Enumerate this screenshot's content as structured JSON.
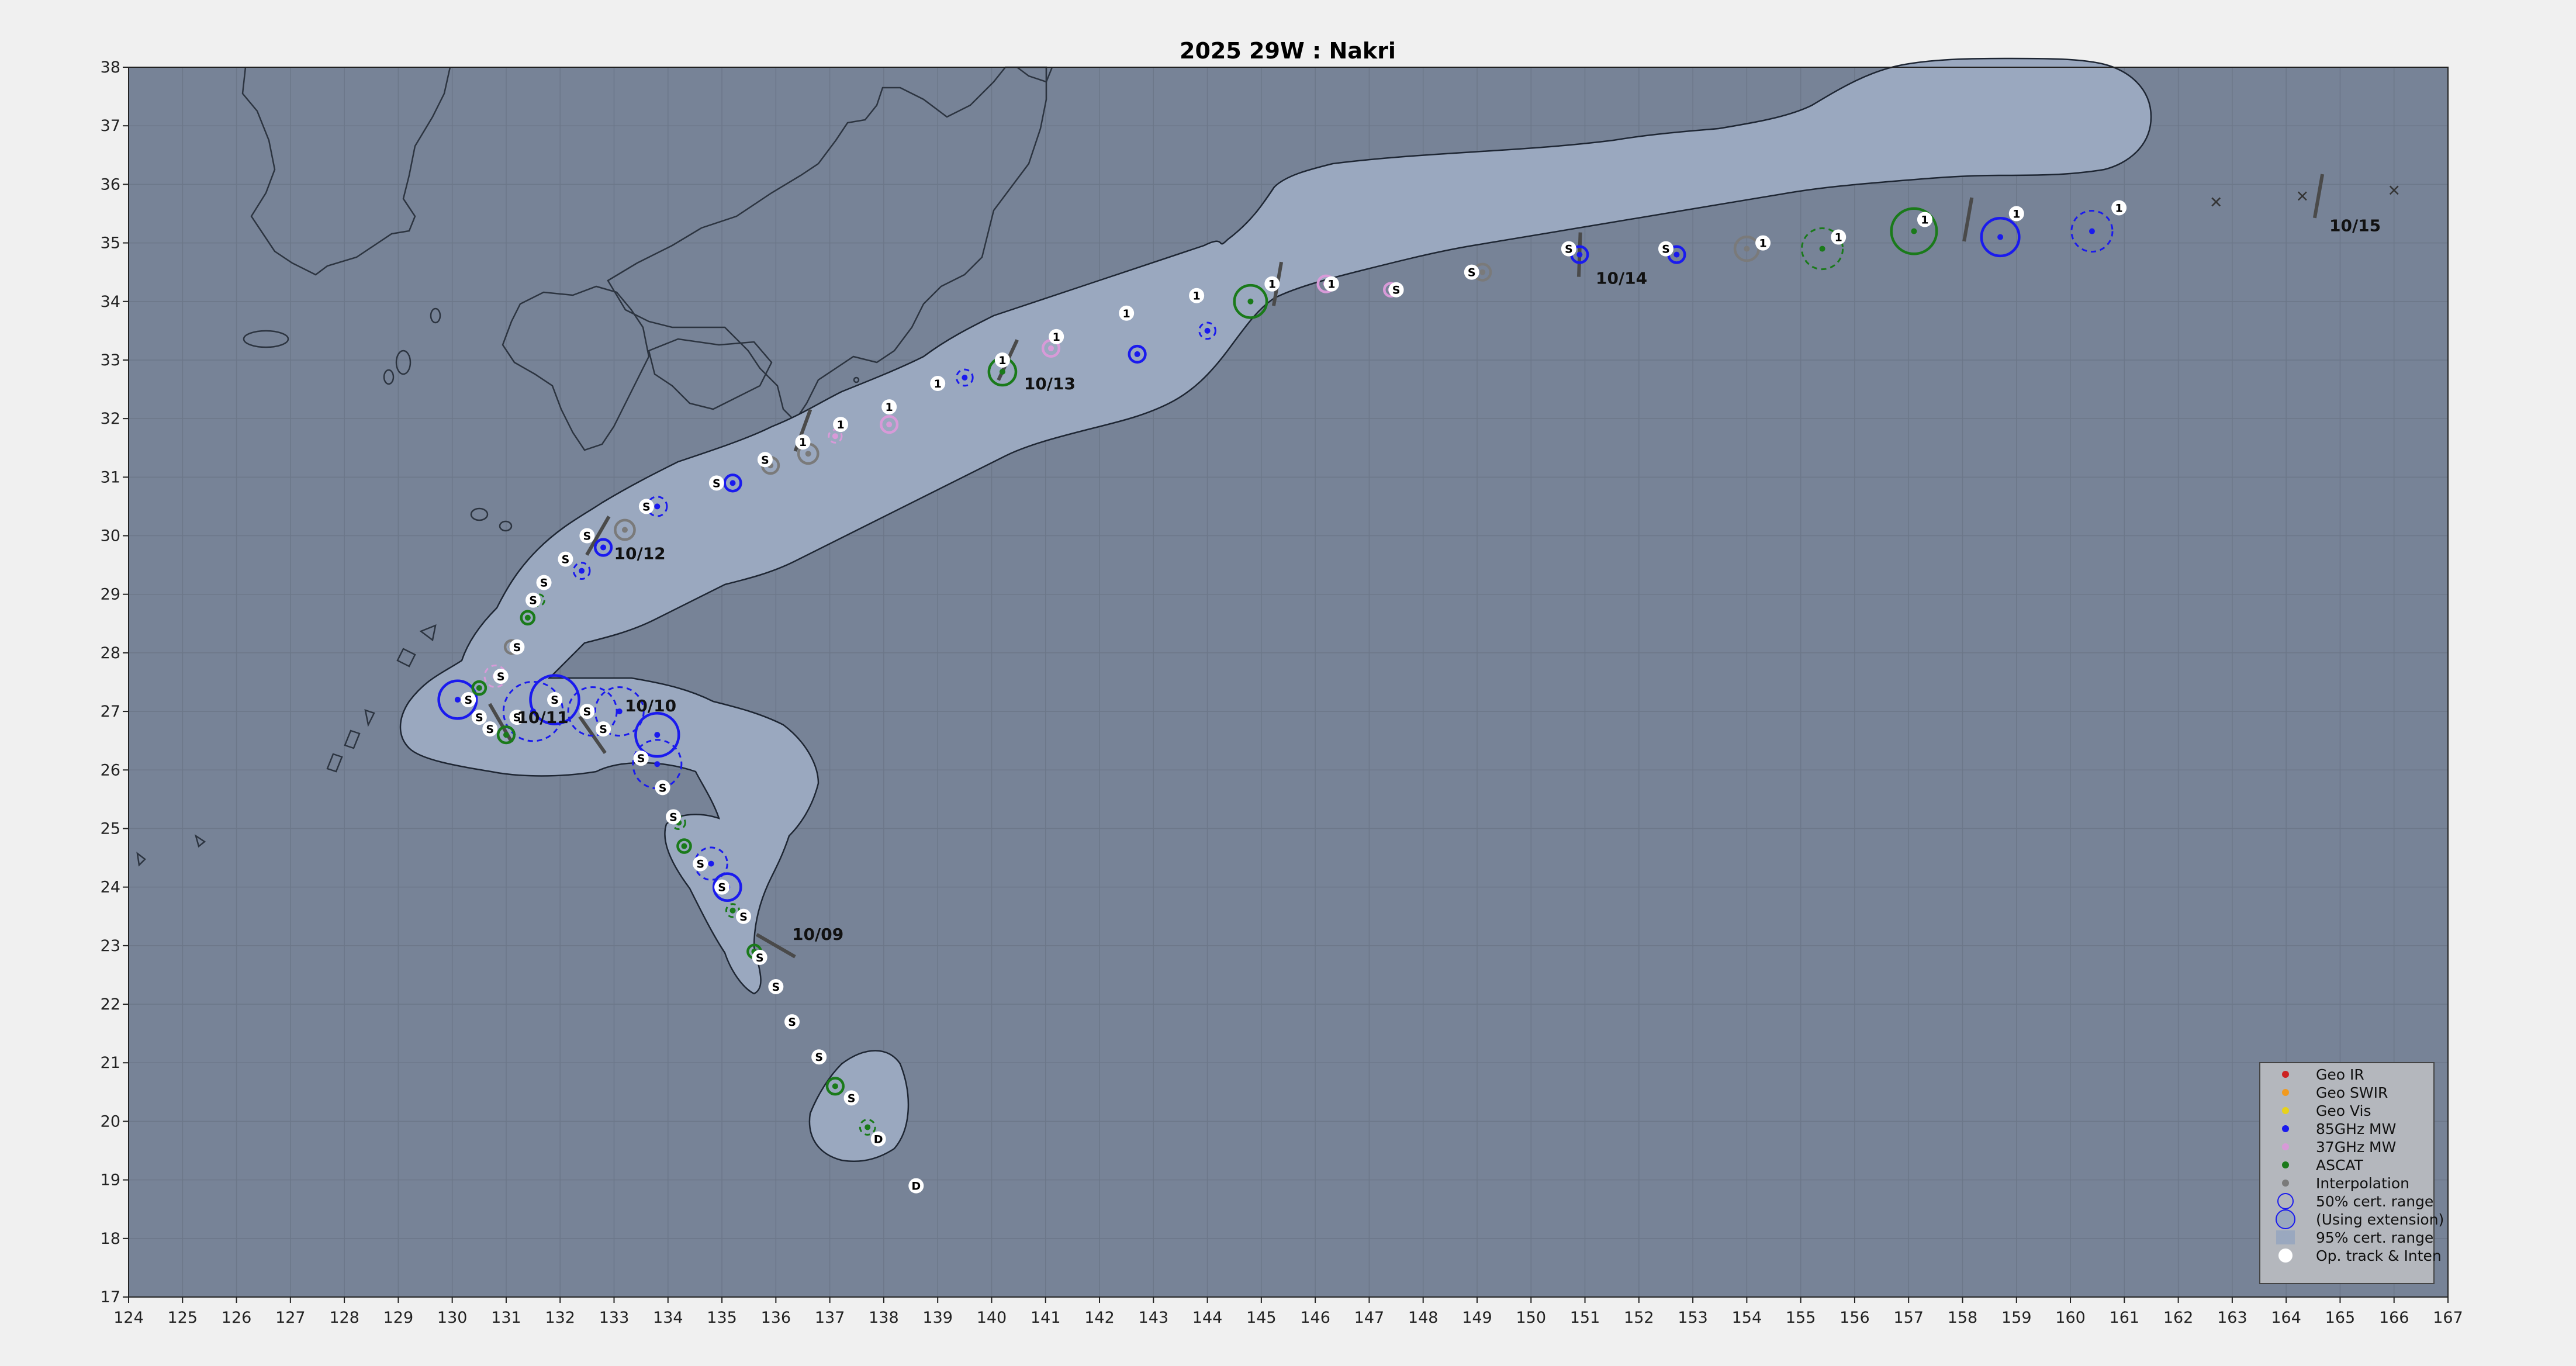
{
  "title": "2025  29W :  Nakri",
  "colors": {
    "background": "#f0f0f0",
    "ocean": "#778397",
    "grid": "#6c7789",
    "coast": "#2c3440",
    "cone_fill": "#9aa8bf",
    "cone_edge": "#1e2633",
    "legend_bg": "#b4b7bd",
    "geo_ir": "#cc2222",
    "geo_swir": "#f29a1e",
    "geo_vis": "#e8d21a",
    "mw85": "#1a1aee",
    "mw37": "#d89ad8",
    "ascat": "#1a7a1a",
    "interp": "#7a7a7a",
    "op_track": "#ffffff"
  },
  "axes": {
    "x_ticks": [
      "124",
      "125",
      "126",
      "127",
      "128",
      "129",
      "130",
      "131",
      "132",
      "133",
      "134",
      "135",
      "136",
      "137",
      "138",
      "139",
      "140",
      "141",
      "142",
      "143",
      "144",
      "145",
      "146",
      "147",
      "148",
      "149",
      "150",
      "151",
      "152",
      "153",
      "154",
      "155",
      "156",
      "157",
      "158",
      "159",
      "160",
      "161",
      "162",
      "163",
      "164",
      "165",
      "166",
      "167"
    ],
    "y_ticks": [
      "17",
      "18",
      "19",
      "20",
      "21",
      "22",
      "23",
      "24",
      "25",
      "26",
      "27",
      "28",
      "29",
      "30",
      "31",
      "32",
      "33",
      "34",
      "35",
      "36",
      "37",
      "38"
    ],
    "lon_range": [
      124,
      167
    ],
    "lat_range": [
      17,
      38
    ]
  },
  "date_labels": [
    {
      "text": "10/09",
      "lon": 136.3,
      "lat": 23.1
    },
    {
      "text": "10/10",
      "lon": 133.2,
      "lat": 27.0
    },
    {
      "text": "10/11",
      "lon": 131.2,
      "lat": 26.8
    },
    {
      "text": "10/12",
      "lon": 133.0,
      "lat": 29.6
    },
    {
      "text": "10/13",
      "lon": 140.6,
      "lat": 32.5
    },
    {
      "text": "10/14",
      "lon": 151.2,
      "lat": 34.3
    },
    {
      "text": "10/15",
      "lon": 164.8,
      "lat": 35.2
    }
  ],
  "day_ticks": [
    {
      "lon": 136.0,
      "lat": 23.0,
      "angle": 30
    },
    {
      "lon": 132.6,
      "lat": 26.6,
      "angle": 55
    },
    {
      "lon": 130.9,
      "lat": 26.8,
      "angle": 60
    },
    {
      "lon": 132.7,
      "lat": 30.0,
      "angle": -60
    },
    {
      "lon": 140.3,
      "lat": 33.0,
      "angle": -65
    },
    {
      "lon": 150.9,
      "lat": 34.8,
      "angle": -88
    },
    {
      "lon": 164.6,
      "lat": 35.8,
      "angle": -80
    },
    {
      "lon": 145.3,
      "lat": 34.3,
      "angle": -80
    },
    {
      "lon": 136.5,
      "lat": 31.8,
      "angle": -70
    },
    {
      "lon": 158.1,
      "lat": 35.4,
      "angle": -80
    }
  ],
  "op_track": [
    {
      "lon": 138.6,
      "lat": 18.9,
      "label": "D"
    },
    {
      "lon": 137.9,
      "lat": 19.7,
      "label": "D"
    },
    {
      "lon": 137.4,
      "lat": 20.4,
      "label": "S"
    },
    {
      "lon": 136.8,
      "lat": 21.1,
      "label": "S"
    },
    {
      "lon": 136.3,
      "lat": 21.7,
      "label": "S"
    },
    {
      "lon": 136.0,
      "lat": 22.3,
      "label": "S"
    },
    {
      "lon": 135.7,
      "lat": 22.8,
      "label": "S"
    },
    {
      "lon": 135.4,
      "lat": 23.5,
      "label": "S"
    },
    {
      "lon": 135.0,
      "lat": 24.0,
      "label": "S"
    },
    {
      "lon": 134.6,
      "lat": 24.4,
      "label": "S"
    },
    {
      "lon": 134.1,
      "lat": 25.2,
      "label": "S"
    },
    {
      "lon": 133.9,
      "lat": 25.7,
      "label": "S"
    },
    {
      "lon": 133.5,
      "lat": 26.2,
      "label": "S"
    },
    {
      "lon": 132.8,
      "lat": 26.7,
      "label": "S"
    },
    {
      "lon": 132.5,
      "lat": 27.0,
      "label": "S"
    },
    {
      "lon": 131.9,
      "lat": 27.2,
      "label": "S"
    },
    {
      "lon": 131.2,
      "lat": 26.9,
      "label": "S"
    },
    {
      "lon": 130.5,
      "lat": 26.9,
      "label": "S"
    },
    {
      "lon": 130.3,
      "lat": 27.2,
      "label": "S"
    },
    {
      "lon": 130.7,
      "lat": 26.7,
      "label": "S"
    },
    {
      "lon": 130.9,
      "lat": 27.6,
      "label": "S"
    },
    {
      "lon": 131.2,
      "lat": 28.1,
      "label": "S"
    },
    {
      "lon": 131.5,
      "lat": 28.9,
      "label": "S"
    },
    {
      "lon": 131.7,
      "lat": 29.2,
      "label": "S"
    },
    {
      "lon": 132.1,
      "lat": 29.6,
      "label": "S"
    },
    {
      "lon": 132.5,
      "lat": 30.0,
      "label": "S"
    },
    {
      "lon": 133.6,
      "lat": 30.5,
      "label": "S"
    },
    {
      "lon": 134.9,
      "lat": 30.9,
      "label": "S"
    },
    {
      "lon": 135.8,
      "lat": 31.3,
      "label": "S"
    },
    {
      "lon": 136.5,
      "lat": 31.6,
      "label": "1"
    },
    {
      "lon": 137.2,
      "lat": 31.9,
      "label": "1"
    },
    {
      "lon": 138.1,
      "lat": 32.2,
      "label": "1"
    },
    {
      "lon": 139.0,
      "lat": 32.6,
      "label": "1"
    },
    {
      "lon": 140.2,
      "lat": 33.0,
      "label": "1"
    },
    {
      "lon": 141.2,
      "lat": 33.4,
      "label": "1"
    },
    {
      "lon": 142.5,
      "lat": 33.8,
      "label": "1"
    },
    {
      "lon": 143.8,
      "lat": 34.1,
      "label": "1"
    },
    {
      "lon": 145.2,
      "lat": 34.3,
      "label": "1"
    },
    {
      "lon": 146.3,
      "lat": 34.3,
      "label": "1"
    },
    {
      "lon": 147.5,
      "lat": 34.2,
      "label": "S"
    },
    {
      "lon": 148.9,
      "lat": 34.5,
      "label": "S"
    },
    {
      "lon": 150.7,
      "lat": 34.9,
      "label": "S"
    },
    {
      "lon": 152.5,
      "lat": 34.9,
      "label": "S"
    },
    {
      "lon": 154.3,
      "lat": 35.0,
      "label": "1"
    },
    {
      "lon": 155.7,
      "lat": 35.1,
      "label": "1"
    },
    {
      "lon": 157.3,
      "lat": 35.4,
      "label": "1"
    },
    {
      "lon": 159.0,
      "lat": 35.5,
      "label": "1"
    },
    {
      "lon": 160.9,
      "lat": 35.6,
      "label": "1"
    }
  ],
  "fixes": [
    {
      "type": "ascat",
      "lon": 137.1,
      "lat": 20.6,
      "r50": 0.15,
      "ext": false
    },
    {
      "type": "ascat",
      "lon": 137.7,
      "lat": 19.9,
      "r50": 0.14,
      "ext": true
    },
    {
      "type": "ascat",
      "lon": 135.6,
      "lat": 22.9,
      "r50": 0.12,
      "ext": false
    },
    {
      "type": "ascat",
      "lon": 135.2,
      "lat": 23.6,
      "r50": 0.12,
      "ext": true
    },
    {
      "type": "mw85",
      "lon": 135.1,
      "lat": 24.0,
      "r50": 0.25,
      "ext": false
    },
    {
      "type": "mw85",
      "lon": 134.8,
      "lat": 24.4,
      "r50": 0.3,
      "ext": true
    },
    {
      "type": "ascat",
      "lon": 134.3,
      "lat": 24.7,
      "r50": 0.12,
      "ext": false
    },
    {
      "type": "ascat",
      "lon": 134.2,
      "lat": 25.1,
      "r50": 0.12,
      "ext": true
    },
    {
      "type": "mw85",
      "lon": 133.8,
      "lat": 26.6,
      "r50": 0.4,
      "ext": false
    },
    {
      "type": "mw85",
      "lon": 133.8,
      "lat": 26.1,
      "r50": 0.45,
      "ext": true
    },
    {
      "type": "mw85",
      "lon": 133.1,
      "lat": 27.0,
      "r50": 0.45,
      "ext": true
    },
    {
      "type": "mw85",
      "lon": 132.6,
      "lat": 27.0,
      "r50": 0.45,
      "ext": true
    },
    {
      "type": "mw85",
      "lon": 131.9,
      "lat": 27.2,
      "r50": 0.45,
      "ext": false
    },
    {
      "type": "mw85",
      "lon": 131.5,
      "lat": 27.0,
      "r50": 0.55,
      "ext": true
    },
    {
      "type": "mw85",
      "lon": 130.1,
      "lat": 27.2,
      "r50": 0.35,
      "ext": false
    },
    {
      "type": "ascat",
      "lon": 130.5,
      "lat": 27.4,
      "r50": 0.12,
      "ext": false
    },
    {
      "type": "ascat",
      "lon": 131.0,
      "lat": 26.6,
      "r50": 0.15,
      "ext": false
    },
    {
      "type": "mw37",
      "lon": 130.8,
      "lat": 27.6,
      "r50": 0.2,
      "ext": true
    },
    {
      "type": "interp",
      "lon": 131.1,
      "lat": 28.1,
      "r50": 0.12,
      "ext": false
    },
    {
      "type": "ascat",
      "lon": 131.4,
      "lat": 28.6,
      "r50": 0.12,
      "ext": false
    },
    {
      "type": "ascat",
      "lon": 131.6,
      "lat": 28.9,
      "r50": 0.1,
      "ext": true
    },
    {
      "type": "mw85",
      "lon": 132.4,
      "lat": 29.4,
      "r50": 0.15,
      "ext": true
    },
    {
      "type": "mw85",
      "lon": 132.8,
      "lat": 29.8,
      "r50": 0.15,
      "ext": false
    },
    {
      "type": "interp",
      "lon": 133.2,
      "lat": 30.1,
      "r50": 0.18,
      "ext": false
    },
    {
      "type": "mw85",
      "lon": 133.8,
      "lat": 30.5,
      "r50": 0.18,
      "ext": true
    },
    {
      "type": "mw85",
      "lon": 135.2,
      "lat": 30.9,
      "r50": 0.15,
      "ext": false
    },
    {
      "type": "interp",
      "lon": 136.6,
      "lat": 31.4,
      "r50": 0.18,
      "ext": false
    },
    {
      "type": "interp",
      "lon": 135.9,
      "lat": 31.2,
      "r50": 0.15,
      "ext": false
    },
    {
      "type": "mw37",
      "lon": 137.1,
      "lat": 31.7,
      "r50": 0.12,
      "ext": true
    },
    {
      "type": "mw37",
      "lon": 138.1,
      "lat": 31.9,
      "r50": 0.15,
      "ext": false
    },
    {
      "type": "mw85",
      "lon": 139.5,
      "lat": 32.7,
      "r50": 0.15,
      "ext": true
    },
    {
      "type": "ascat",
      "lon": 140.2,
      "lat": 32.8,
      "r50": 0.25,
      "ext": false
    },
    {
      "type": "mw37",
      "lon": 141.1,
      "lat": 33.2,
      "r50": 0.15,
      "ext": false
    },
    {
      "type": "mw85",
      "lon": 142.7,
      "lat": 33.1,
      "r50": 0.15,
      "ext": false
    },
    {
      "type": "mw85",
      "lon": 144.0,
      "lat": 33.5,
      "r50": 0.15,
      "ext": true
    },
    {
      "type": "ascat",
      "lon": 144.8,
      "lat": 34.0,
      "r50": 0.3,
      "ext": false
    },
    {
      "type": "mw37",
      "lon": 146.2,
      "lat": 34.3,
      "r50": 0.15,
      "ext": false
    },
    {
      "type": "mw37",
      "lon": 147.4,
      "lat": 34.2,
      "r50": 0.12,
      "ext": false
    },
    {
      "type": "interp",
      "lon": 149.1,
      "lat": 34.5,
      "r50": 0.15,
      "ext": false
    },
    {
      "type": "mw85",
      "lon": 150.9,
      "lat": 34.8,
      "r50": 0.15,
      "ext": false
    },
    {
      "type": "mw85",
      "lon": 152.7,
      "lat": 34.8,
      "r50": 0.15,
      "ext": false
    },
    {
      "type": "interp",
      "lon": 154.0,
      "lat": 34.9,
      "r50": 0.22,
      "ext": false
    },
    {
      "type": "ascat",
      "lon": 155.4,
      "lat": 34.9,
      "r50": 0.38,
      "ext": true
    },
    {
      "type": "ascat",
      "lon": 157.1,
      "lat": 35.2,
      "r50": 0.42,
      "ext": false
    },
    {
      "type": "mw85",
      "lon": 158.7,
      "lat": 35.1,
      "r50": 0.35,
      "ext": false
    },
    {
      "type": "mw85",
      "lon": 160.4,
      "lat": 35.2,
      "r50": 0.38,
      "ext": true
    }
  ],
  "x_marks": [
    {
      "lon": 162.7,
      "lat": 35.7
    },
    {
      "lon": 164.3,
      "lat": 35.8
    },
    {
      "lon": 166.0,
      "lat": 35.9
    }
  ],
  "legend": {
    "items": [
      {
        "label": "Geo IR",
        "kind": "dot",
        "color_key": "geo_ir"
      },
      {
        "label": "Geo SWIR",
        "kind": "dot",
        "color_key": "geo_swir"
      },
      {
        "label": "Geo Vis",
        "kind": "dot",
        "color_key": "geo_vis"
      },
      {
        "label": "85GHz MW",
        "kind": "dot",
        "color_key": "mw85"
      },
      {
        "label": "37GHz MW",
        "kind": "dot",
        "color_key": "mw37"
      },
      {
        "label": "ASCAT",
        "kind": "dot",
        "color_key": "ascat"
      },
      {
        "label": "Interpolation",
        "kind": "dot",
        "color_key": "interp"
      },
      {
        "label": "50% cert. range",
        "kind": "circle",
        "color_key": "mw85"
      },
      {
        "label": "(Using extension)",
        "kind": "circle-fill",
        "color_key": "mw85"
      },
      {
        "label": "95% cert. range",
        "kind": "patch",
        "color_key": "cone_fill"
      },
      {
        "label": "Op. track & Inten",
        "kind": "white-dot",
        "color_key": "op_track"
      }
    ]
  }
}
